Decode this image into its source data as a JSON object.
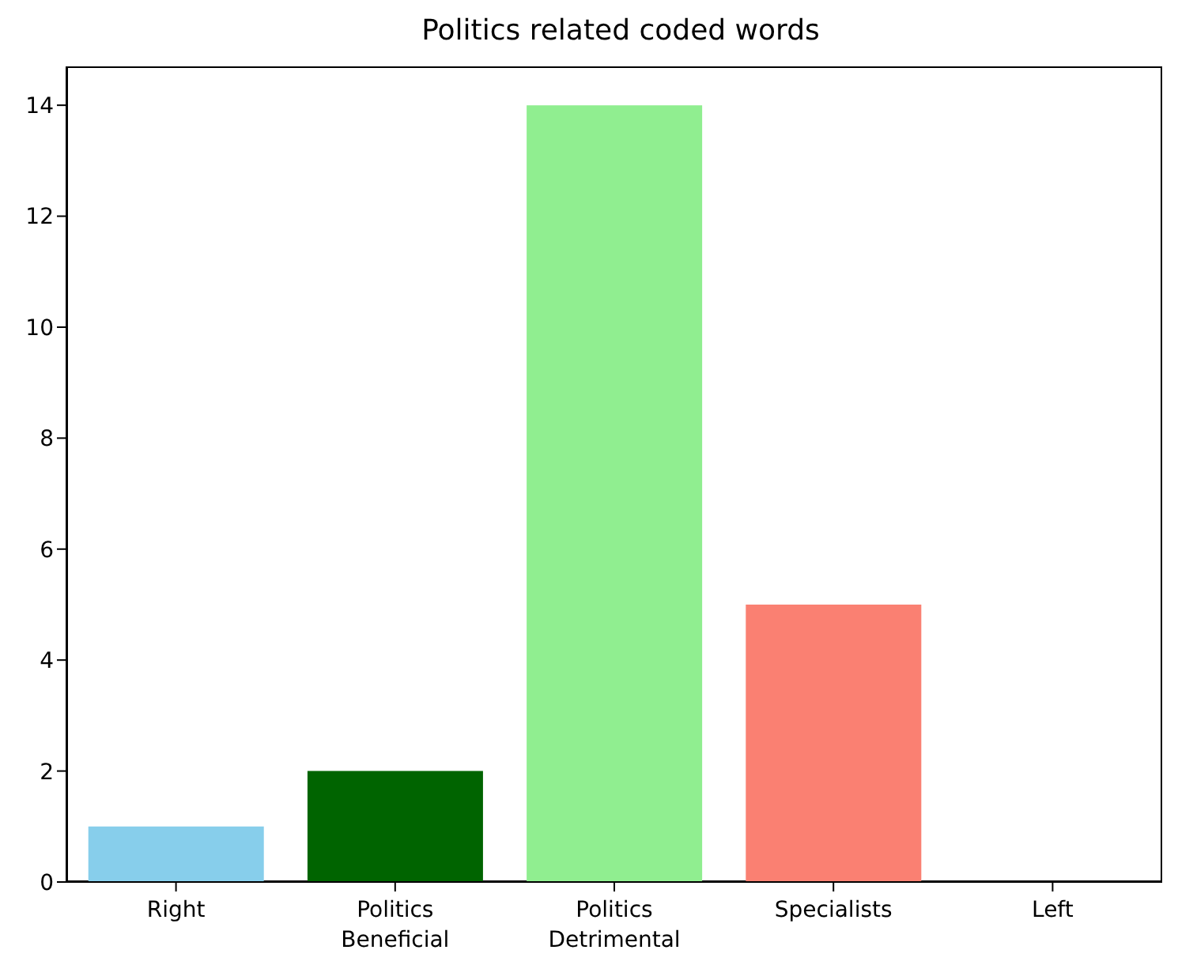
{
  "chart_data": {
    "type": "bar",
    "title": "Politics related coded words",
    "categories": [
      "Right",
      "Politics Beneficial",
      "Politics Detrimental",
      "Specialists",
      "Left"
    ],
    "values": [
      1,
      2,
      14,
      5,
      0
    ],
    "colors": [
      "#87ceeb",
      "#006400",
      "#90ee90",
      "#fa8072",
      "#1f77b4"
    ],
    "ylim": [
      0,
      14.7
    ],
    "yticks": [
      0,
      2,
      4,
      6,
      8,
      10,
      12,
      14
    ]
  }
}
